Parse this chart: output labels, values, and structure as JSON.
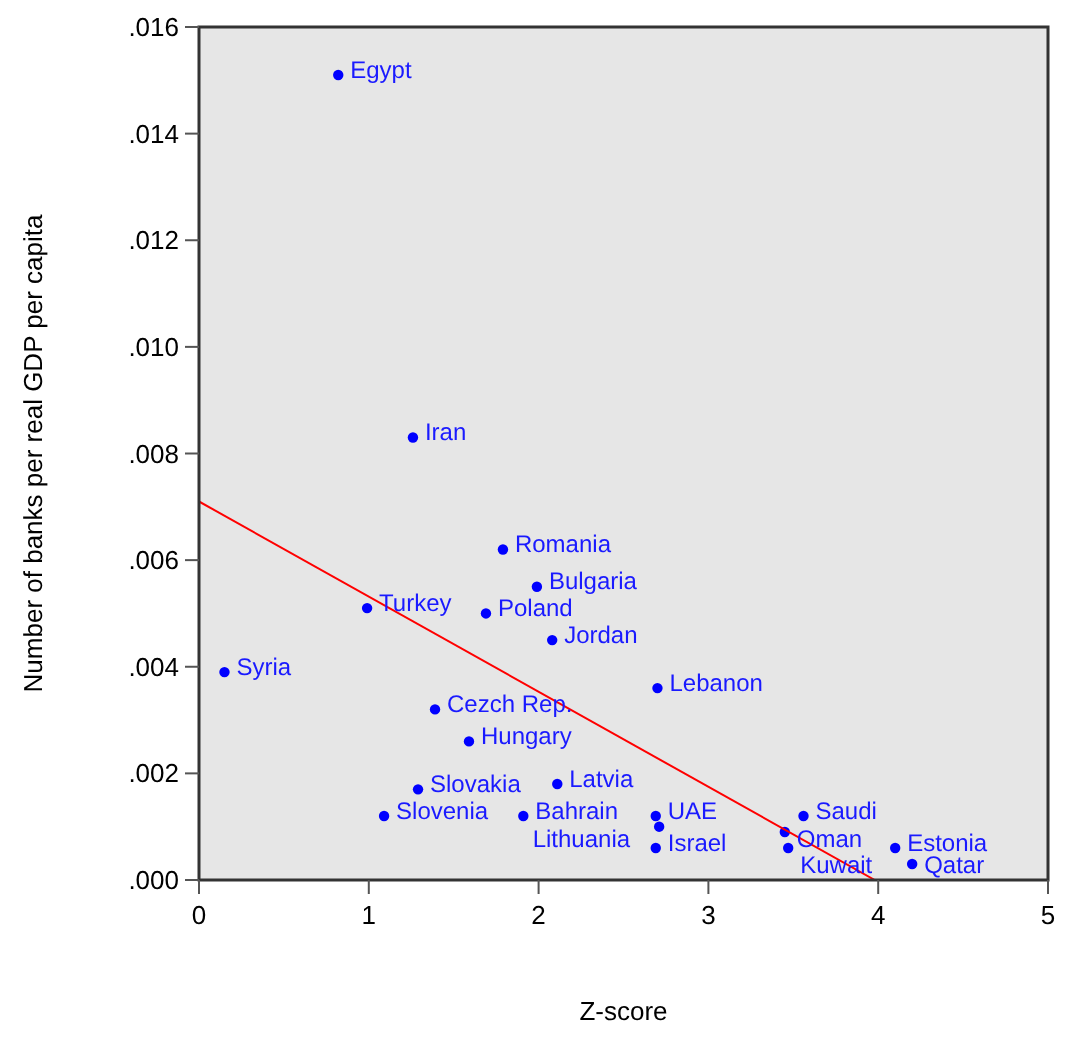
{
  "chart_data": {
    "type": "scatter",
    "xlabel": "Z-score",
    "ylabel": "Number of banks per real GDP per capita",
    "xlim": [
      0,
      5
    ],
    "xticks": [
      0,
      1,
      2,
      3,
      4,
      5
    ],
    "ylim": [
      0,
      0.016
    ],
    "yticks": [
      {
        "value": 0,
        "label": ".000"
      },
      {
        "value": 0.002,
        "label": ".002"
      },
      {
        "value": 0.004,
        "label": ".004"
      },
      {
        "value": 0.006,
        "label": ".006"
      },
      {
        "value": 0.008,
        "label": ".008"
      },
      {
        "value": 0.01,
        "label": ".010"
      },
      {
        "value": 0.012,
        "label": ".012"
      },
      {
        "value": 0.014,
        "label": ".014"
      },
      {
        "value": 0.016,
        "label": ".016"
      }
    ],
    "grid": false,
    "marker": "circle",
    "series": [
      {
        "type": "scatter",
        "color": "#0000ff",
        "x": [
          0.82,
          1.26,
          1.79,
          1.99,
          0.99,
          1.69,
          2.08,
          0.15,
          2.7,
          1.39,
          1.59,
          1.29,
          2.11,
          1.09,
          1.91,
          2.69,
          2.71,
          2.69,
          3.56,
          3.45,
          3.47,
          4.1,
          4.2
        ],
        "values": [
          0.0151,
          0.0083,
          0.0062,
          0.0055,
          0.0051,
          0.005,
          0.0045,
          0.0039,
          0.0036,
          0.0032,
          0.0026,
          0.0017,
          0.0018,
          0.0012,
          0.0012,
          0.0012,
          0.001,
          0.0006,
          0.0012,
          0.0009,
          0.0006,
          0.0006,
          0.0003
        ]
      },
      {
        "type": "line",
        "color": "#ff0000",
        "x": [
          0,
          3.98
        ],
        "values": [
          0.0071,
          0
        ],
        "marker": "none"
      }
    ],
    "annotations": [
      {
        "text": "Egypt",
        "x": 0.82,
        "y": 0.0151
      },
      {
        "text": "Iran",
        "x": 1.26,
        "y": 0.0083
      },
      {
        "text": "Romania",
        "x": 1.79,
        "y": 0.0062
      },
      {
        "text": "Bulgaria",
        "x": 1.99,
        "y": 0.0055
      },
      {
        "text": "Turkey",
        "x": 0.99,
        "y": 0.0051
      },
      {
        "text": "Poland",
        "x": 1.69,
        "y": 0.005
      },
      {
        "text": "Jordan",
        "x": 2.08,
        "y": 0.0045
      },
      {
        "text": "Syria",
        "x": 0.15,
        "y": 0.0039
      },
      {
        "text": "Lebanon",
        "x": 2.7,
        "y": 0.0036
      },
      {
        "text": "Cezch Rep.",
        "x": 1.39,
        "y": 0.0032
      },
      {
        "text": "Hungary",
        "x": 1.59,
        "y": 0.0026
      },
      {
        "text": "Slovakia",
        "x": 1.29,
        "y": 0.0017
      },
      {
        "text": "Latvia",
        "x": 2.11,
        "y": 0.0018
      },
      {
        "text": "Slovenia",
        "x": 1.09,
        "y": 0.0012
      },
      {
        "text": "Bahrain",
        "x": 1.91,
        "y": 0.0012
      },
      {
        "text": "UAE",
        "x": 2.69,
        "y": 0.0012
      },
      {
        "text": "Lithuania",
        "x": 2.71,
        "y": 0.001
      },
      {
        "text": "Israel",
        "x": 2.69,
        "y": 0.0006
      },
      {
        "text": "Saudi",
        "x": 3.56,
        "y": 0.0012
      },
      {
        "text": "Oman",
        "x": 3.45,
        "y": 0.0009
      },
      {
        "text": "Kuwait",
        "x": 3.47,
        "y": 0.0006
      },
      {
        "text": "Estonia",
        "x": 4.1,
        "y": 0.0006
      },
      {
        "text": "Qatar",
        "x": 4.2,
        "y": 0.0003
      }
    ]
  }
}
